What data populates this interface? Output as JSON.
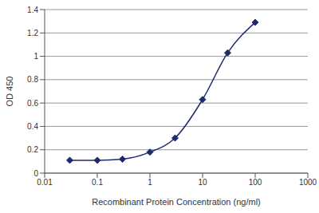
{
  "chart_data": {
    "type": "line",
    "x_label": "Recombinant Protein Concentration (ng/ml)",
    "y_label": "OD 450",
    "x": [
      0.03,
      0.1,
      0.3,
      1,
      3,
      10,
      30,
      100
    ],
    "values": [
      0.11,
      0.11,
      0.12,
      0.18,
      0.3,
      0.63,
      1.03,
      1.29
    ],
    "color": "#1f2a6e",
    "marker": "diamond",
    "line_style": "solid",
    "log": "x",
    "xlim": [
      0.01,
      1000
    ],
    "xticks": [
      0.01,
      0.1,
      1,
      10,
      100,
      1000
    ],
    "ylim": [
      0,
      1.4
    ],
    "yticks": [
      0,
      0.2,
      0.4,
      0.6,
      0.8,
      1,
      1.2,
      1.4
    ],
    "grid": true
  }
}
